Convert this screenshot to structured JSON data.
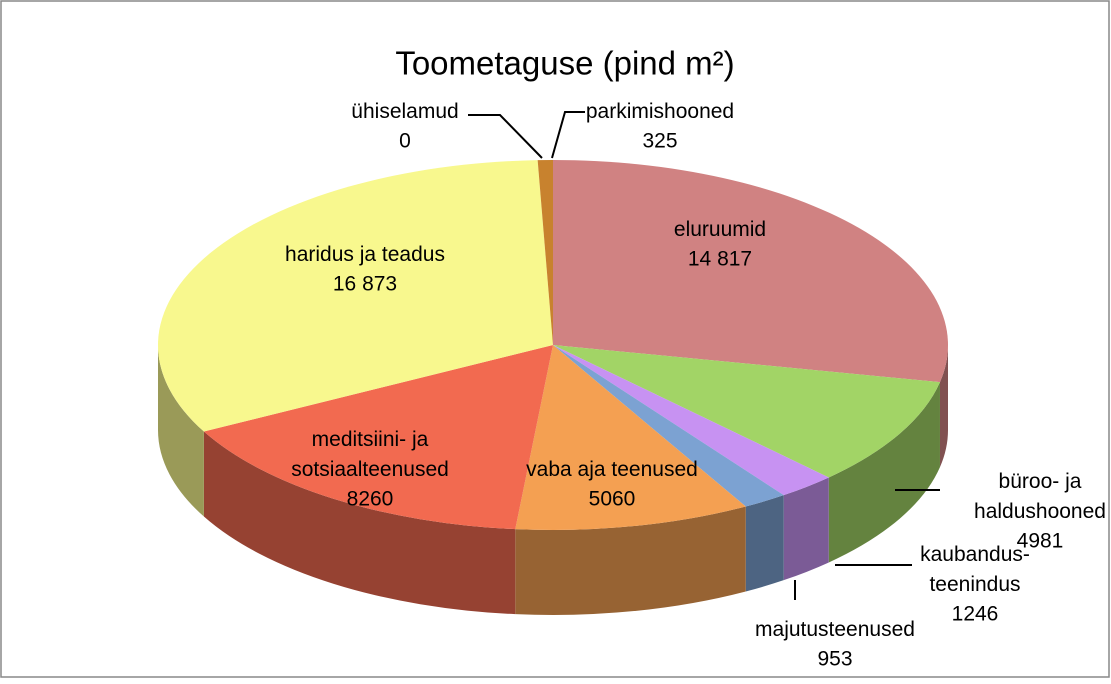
{
  "chart_data": {
    "type": "pie3d",
    "title": "Toometaguse (pind m²)",
    "categories": [
      "eluruumid",
      "büroo- ja\nhaldushooned",
      "kaubandus-\nteenindus",
      "majutusteenused",
      "vaba aja teenused",
      "meditsiini- ja\nsotsiaalteenused",
      "haridus ja teadus",
      "ühiselamud",
      "parkimishooned"
    ],
    "values": [
      14817,
      4981,
      1246,
      953,
      5060,
      8260,
      16873,
      0,
      325
    ],
    "value_labels": [
      "14 817",
      "4981",
      "1246",
      "953",
      "5060",
      "8260",
      "16 873",
      "0",
      "325"
    ],
    "colors": [
      "#d08282",
      "#a2d466",
      "#c792f2",
      "#7ca2d2",
      "#f4a052",
      "#f26a50",
      "#f8f88e",
      "#8a8a8a",
      "#c8822e"
    ]
  }
}
